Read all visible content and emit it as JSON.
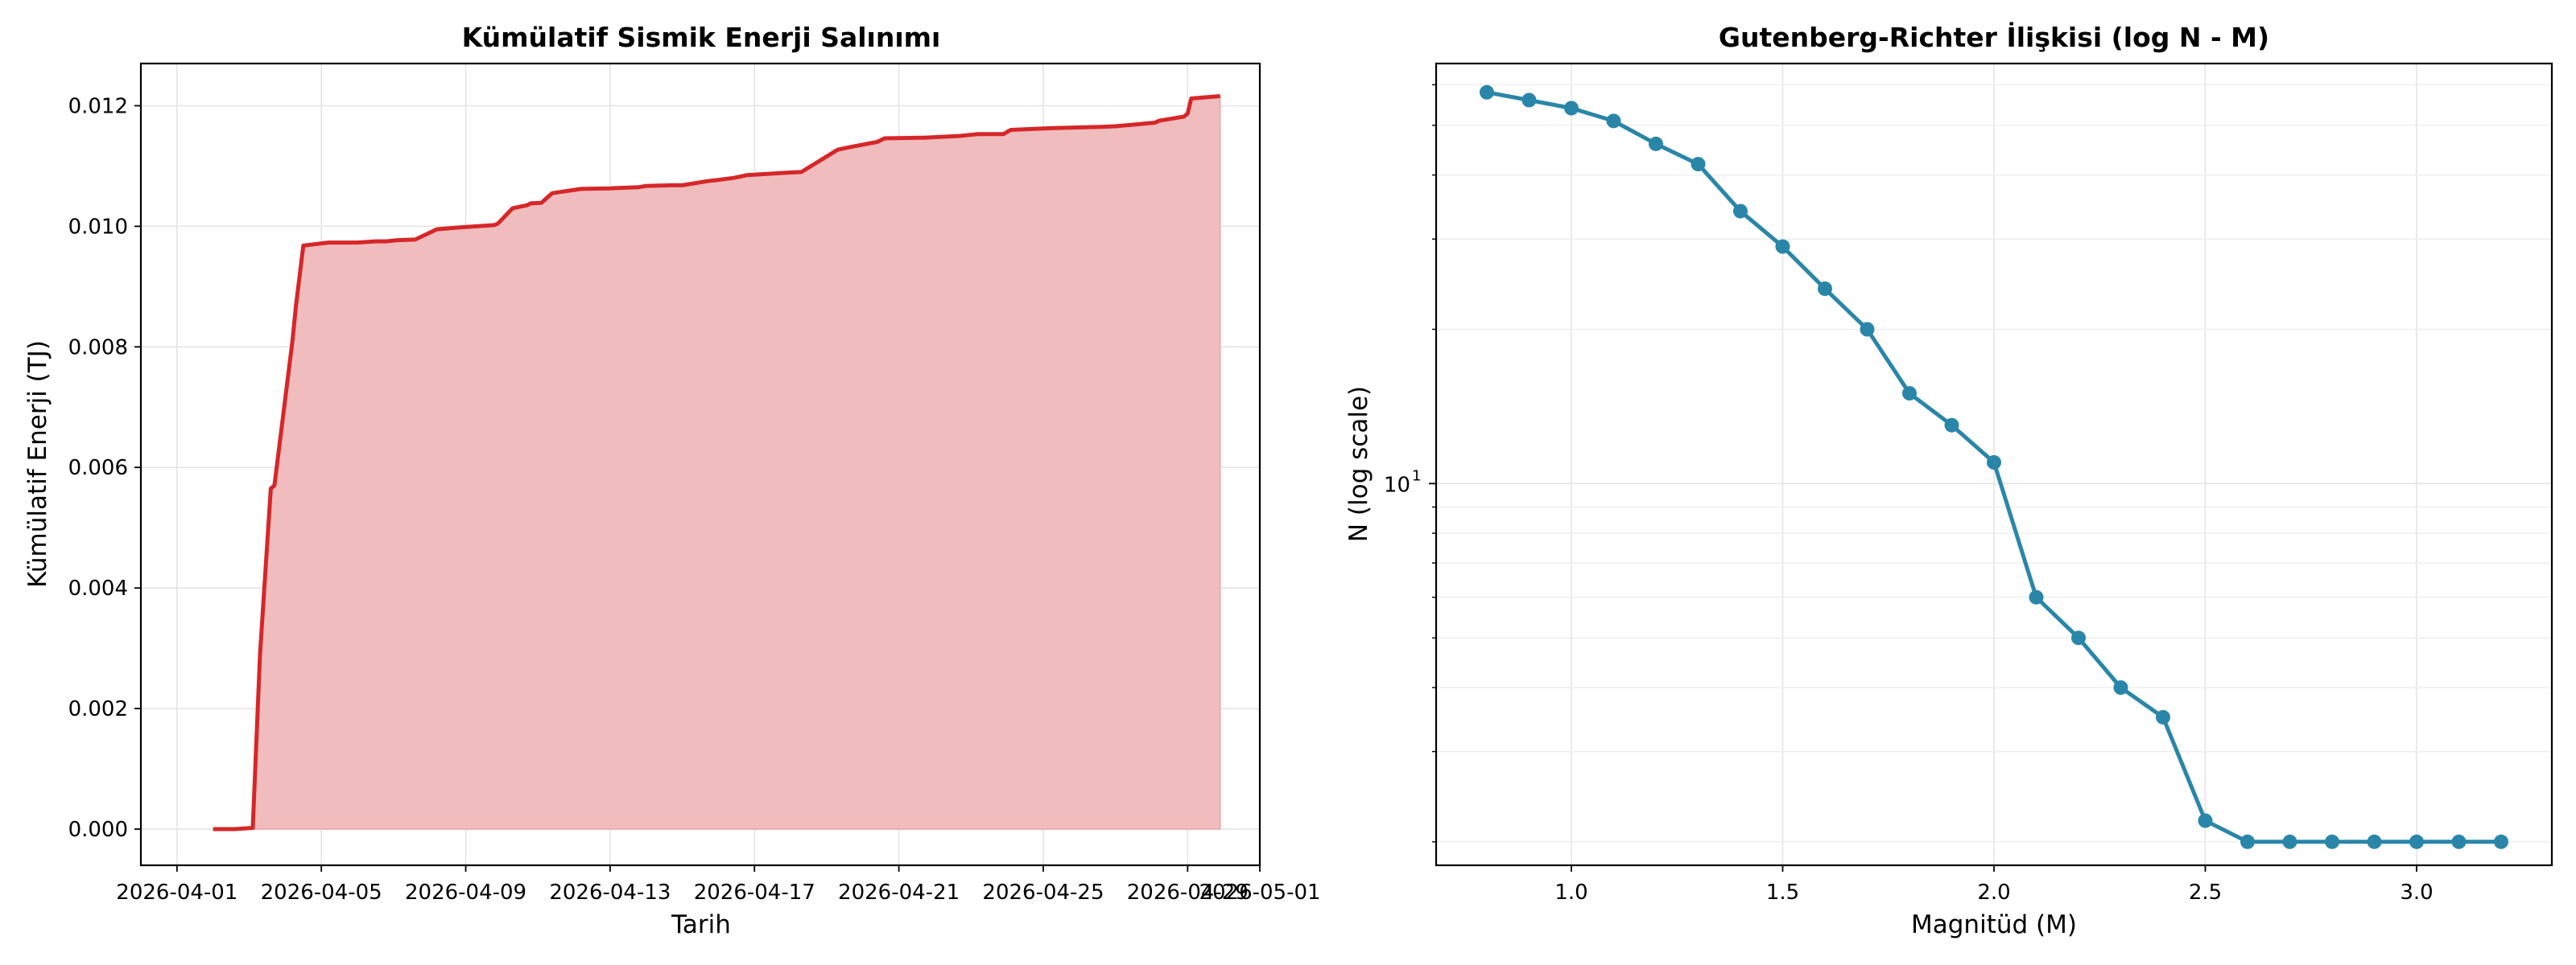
{
  "chart_data": [
    {
      "type": "area",
      "title": "Kümülatif Sismik Enerji Salınımı",
      "xlabel": "Tarih",
      "ylabel": "Kümülatif Enerji (TJ)",
      "x_ticks": [
        "2026-04-01",
        "2026-04-05",
        "2026-04-09",
        "2026-04-13",
        "2026-04-17",
        "2026-04-21",
        "2026-04-25",
        "2026-04-29",
        "2026-05-01"
      ],
      "y_ticks": [
        "0.000",
        "0.002",
        "0.004",
        "0.006",
        "0.008",
        "0.010",
        "0.012"
      ],
      "xlim": [
        "2026-03-31T00:00",
        "2026-05-01T00:00"
      ],
      "ylim": [
        -0.0006,
        0.0127
      ],
      "grid": true,
      "colors": {
        "line": "#d62728",
        "fill": "#f1bcbe"
      },
      "series": [
        {
          "x": [
            "2026-04-02T00:00",
            "2026-04-02T14:24",
            "2026-04-03T02:24",
            "2026-04-03T07:12",
            "2026-04-03T14:24",
            "2026-04-03T16:48",
            "2026-04-04T04:48",
            "2026-04-04T07:12",
            "2026-04-04T12:00",
            "2026-04-05T04:48",
            "2026-04-06T00:00",
            "2026-04-06T12:00",
            "2026-04-06T19:12",
            "2026-04-07T02:24",
            "2026-04-07T14:24",
            "2026-04-08T04:48",
            "2026-04-08T19:12",
            "2026-04-09T19:12",
            "2026-04-09T21:36",
            "2026-04-10T07:12",
            "2026-04-10T16:48",
            "2026-04-10T19:12",
            "2026-04-11T02:24",
            "2026-04-11T07:12",
            "2026-04-11T09:36",
            "2026-04-12T04:48",
            "2026-04-13T00:00",
            "2026-04-13T19:12",
            "2026-04-14T00:00",
            "2026-04-14T16:48",
            "2026-04-15T00:00",
            "2026-04-15T16:48",
            "2026-04-16T00:00",
            "2026-04-16T09:36",
            "2026-04-16T19:12",
            "2026-04-17T21:36",
            "2026-04-18T07:12",
            "2026-04-19T07:12",
            "2026-04-19T16:48",
            "2026-04-20T09:36",
            "2026-04-20T14:24",
            "2026-04-21T16:48",
            "2026-04-22T16:48",
            "2026-04-23T04:48",
            "2026-04-23T21:36",
            "2026-04-24T02:24",
            "2026-04-25T07:12",
            "2026-04-26T14:24",
            "2026-04-27T00:00",
            "2026-04-28T02:24",
            "2026-04-28T04:48",
            "2026-04-28T21:36",
            "2026-04-29T00:00",
            "2026-04-29T02:24",
            "2026-04-29T21:36"
          ],
          "y": [
            0.0,
            0.0,
            2e-05,
            0.0029,
            0.00565,
            0.0057,
            0.0081,
            0.0087,
            0.00968,
            0.00973,
            0.00973,
            0.00975,
            0.00975,
            0.00977,
            0.00978,
            0.00995,
            0.00998,
            0.01002,
            0.01005,
            0.0103,
            0.01035,
            0.01038,
            0.01039,
            0.0105,
            0.01055,
            0.01062,
            0.01063,
            0.01065,
            0.01067,
            0.01068,
            0.01068,
            0.01075,
            0.01077,
            0.0108,
            0.01085,
            0.01089,
            0.0109,
            0.01127,
            0.01132,
            0.0114,
            0.01146,
            0.01147,
            0.0115,
            0.01153,
            0.01153,
            0.0116,
            0.01163,
            0.01165,
            0.01166,
            0.01172,
            0.01175,
            0.01182,
            0.01187,
            0.01212,
            0.01216
          ]
        }
      ]
    },
    {
      "type": "line",
      "title": "Gutenberg-Richter İlişkisi (log N - M)",
      "xlabel": "Magnitüd (M)",
      "ylabel": "N (log scale)",
      "y_scale": "log",
      "x_ticks": [
        "1.0",
        "1.5",
        "2.0",
        "2.5",
        "3.0"
      ],
      "y_tick_label": "10",
      "y_tick_exponent": "1",
      "xlim": [
        0.68,
        3.32
      ],
      "ylim": [
        1.8,
        66
      ],
      "grid": true,
      "colors": {
        "line": "#2a86a8",
        "marker": "#2a86a8"
      },
      "series": [
        {
          "x": [
            0.8,
            0.9,
            1.0,
            1.1,
            1.2,
            1.3,
            1.4,
            1.5,
            1.6,
            1.7,
            1.8,
            1.9,
            2.0,
            2.1,
            2.2,
            2.3,
            2.4,
            2.5,
            2.6,
            2.7,
            2.8,
            2.9,
            3.0,
            3.1,
            3.2
          ],
          "y": [
            58,
            56,
            54,
            51,
            46,
            42,
            34,
            29,
            24,
            20,
            15,
            13,
            11,
            6,
            5,
            4,
            3.5,
            2.2,
            2,
            2,
            2,
            2,
            2,
            2,
            2
          ]
        }
      ]
    }
  ]
}
